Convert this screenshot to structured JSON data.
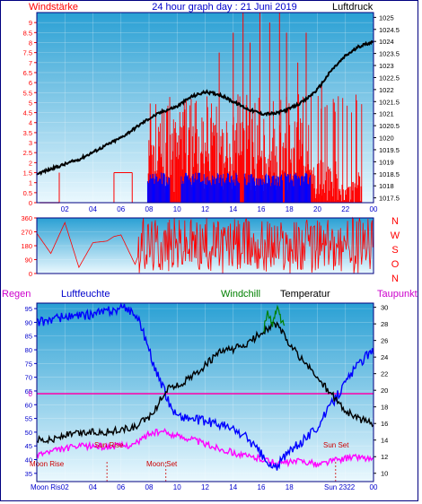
{
  "header": {
    "left_label": "Windstärke",
    "title": "24 hour graph day : 21 Juni 2019",
    "right_label": "Luftdruck"
  },
  "colors": {
    "frame": "#000080",
    "plot_bg_top": "#39a9d6",
    "plot_bg_bottom": "#e8f7fd",
    "wind": "#ff0000",
    "gust": "#0000ff",
    "pressure": "#000000",
    "direction": "#ff0000",
    "humidity": "#0000ff",
    "temperature": "#000000",
    "dewpoint": "#ff00ff",
    "windchill": "#008000",
    "rain_line": "#ff00aa"
  },
  "chart_data": [
    {
      "type": "line",
      "name": "wind-pressure",
      "x_tick_labels": [
        "02",
        "04",
        "06",
        "08",
        "10",
        "12",
        "14",
        "16",
        "18",
        "20",
        "22",
        "00"
      ],
      "left_axis_label": "Windstärke",
      "left_ticks": [
        "0",
        "0.5",
        "1",
        "1.5",
        "2",
        "2.5",
        "3",
        "3.5",
        "4",
        "4.5",
        "5",
        "5.5",
        "6",
        "6.5",
        "7",
        "7.5",
        "8",
        "8.5",
        "9"
      ],
      "ylim_left": [
        0,
        9.5
      ],
      "right_axis_label": "Luftdruck",
      "right_ticks": [
        "1017.5",
        "1018",
        "1018.5",
        "1019",
        "1019.5",
        "1020",
        "1020.5",
        "1021",
        "1021.5",
        "1022",
        "1022.5",
        "1023",
        "1023.5",
        "1024",
        "1024.5",
        "1025"
      ],
      "ylim_right": [
        1017.3,
        1025.2
      ],
      "pressure": {
        "x": [
          0,
          1,
          2,
          3,
          4,
          5,
          6,
          7,
          8,
          9,
          10,
          11,
          12,
          13,
          14,
          15,
          16,
          17,
          18,
          19,
          20,
          21,
          22,
          23,
          24
        ],
        "y": [
          1018.5,
          1018.7,
          1018.9,
          1019.1,
          1019.4,
          1019.7,
          1020.0,
          1020.4,
          1020.8,
          1021.1,
          1021.3,
          1021.7,
          1021.9,
          1021.8,
          1021.5,
          1021.2,
          1021.0,
          1021.0,
          1021.2,
          1021.5,
          1022.0,
          1022.8,
          1023.4,
          1023.8,
          1024.0
        ]
      },
      "wind_speed_segments": [
        [
          7.9,
          0,
          0,
          1.5
        ],
        [
          8.0,
          2.5,
          1,
          3.5
        ],
        [
          8.3,
          3.8,
          1.5,
          4.5
        ],
        [
          8.7,
          4.8,
          2,
          4.5
        ],
        [
          9.4,
          5.3,
          2.5,
          4.5
        ],
        [
          10.5,
          5.9,
          1.5,
          4.5
        ],
        [
          11.4,
          6.8,
          2,
          4.5
        ],
        [
          12.0,
          7.8,
          2,
          4.5
        ],
        [
          12.8,
          8.5,
          2.5,
          5.0
        ],
        [
          13.6,
          9.2,
          1.5,
          4.5
        ],
        [
          14.4,
          10.0,
          2,
          4.5
        ],
        [
          15.3,
          11.0,
          1.5,
          4.5
        ],
        [
          16.2,
          11.8,
          2,
          4.5
        ],
        [
          17.0,
          12.5,
          2.5,
          4.5
        ],
        [
          17.9,
          13.3,
          2,
          4.5
        ],
        [
          18.8,
          14.2,
          1.5,
          3.5
        ],
        [
          19.5,
          15.0,
          1,
          3
        ],
        [
          20.1,
          16.0,
          0.5,
          2
        ],
        [
          21.0,
          17.0,
          0.5,
          1.5
        ],
        [
          22.6,
          18.5,
          0,
          1
        ]
      ],
      "wind_tall_spikes": [
        [
          13.0,
          7.5
        ],
        [
          14.0,
          8.5
        ],
        [
          14.7,
          9.5
        ],
        [
          15.2,
          8.0
        ],
        [
          15.9,
          9.5
        ],
        [
          16.6,
          9.0
        ],
        [
          17.3,
          9.5
        ],
        [
          17.8,
          8.5
        ],
        [
          18.6,
          7.0
        ],
        [
          19.2,
          8.5
        ],
        [
          20.3,
          6.0
        ],
        [
          21.2,
          5.0
        ]
      ],
      "gust_bands": [
        [
          7.9,
          8.2,
          0,
          1.5
        ],
        [
          8.2,
          9.5,
          0,
          1.5
        ],
        [
          10.3,
          14.5,
          0,
          1.5
        ],
        [
          14.8,
          17.5,
          0,
          1.5
        ],
        [
          17.7,
          19.5,
          0,
          1.5
        ]
      ]
    },
    {
      "type": "line",
      "name": "wind-direction",
      "left_ticks": [
        "0",
        "90",
        "180",
        "270",
        "360"
      ],
      "ylim": [
        0,
        360
      ],
      "right_labels": [
        "N",
        "W",
        "S",
        "O",
        "N"
      ],
      "x": [
        0,
        1,
        2,
        3,
        4,
        5,
        5.5,
        6,
        7,
        7.5,
        8,
        8.5,
        9,
        9.5,
        10,
        10.5,
        11,
        11.5,
        12,
        12.5,
        13,
        13.5,
        14,
        14.5,
        15,
        15.5,
        16,
        16.5,
        17,
        17.5,
        18,
        18.5,
        19,
        19.5,
        20,
        20.5,
        21,
        21.5,
        22,
        22.5,
        23,
        23.5,
        24
      ],
      "y": [
        260,
        130,
        330,
        40,
        200,
        210,
        240,
        250,
        60,
        180,
        290,
        150,
        320,
        80,
        300,
        200,
        100,
        340,
        160,
        250,
        60,
        300,
        180,
        90,
        330,
        210,
        120,
        280,
        50,
        250,
        190,
        100,
        320,
        80,
        240,
        20,
        300,
        150,
        270,
        60,
        200,
        310,
        80
      ]
    },
    {
      "type": "line",
      "name": "temp-humidity",
      "header_labels": [
        "Regen",
        "Luftfeuchte",
        "Windchill",
        "Temperatur",
        "Taupunkt"
      ],
      "x_tick_labels": [
        "02",
        "04",
        "06",
        "08",
        "10",
        "12",
        "14",
        "16",
        "18",
        "20",
        "22",
        "00"
      ],
      "left_ticks": [
        "35",
        "40",
        "45",
        "50",
        "55",
        "60",
        "65",
        "70",
        "75",
        "80",
        "85",
        "90",
        "95"
      ],
      "ylim_left": [
        32,
        97
      ],
      "rain_value_label": "0",
      "right_ticks": [
        "10",
        "12",
        "14",
        "16",
        "18",
        "20",
        "22",
        "24",
        "26",
        "28",
        "30"
      ],
      "ylim_right": [
        9,
        30.5
      ],
      "humidity": {
        "x": [
          0,
          1,
          2,
          3,
          4,
          5,
          6,
          6.5,
          7,
          7.5,
          8,
          8.5,
          9,
          9.5,
          10,
          11,
          12,
          13,
          14,
          15,
          16,
          16.5,
          17,
          17.5,
          18,
          19,
          20,
          21,
          22,
          22.5,
          23,
          23.5,
          24
        ],
        "y": [
          90,
          91,
          92,
          92,
          93,
          94,
          95,
          95,
          93,
          88,
          80,
          72,
          66,
          60,
          56,
          55,
          54,
          53,
          51,
          48,
          42,
          38,
          37,
          40,
          43,
          47,
          52,
          60,
          68,
          72,
          75,
          78,
          79
        ]
      },
      "temperature": {
        "x": [
          0,
          1,
          2,
          3,
          4,
          5,
          6,
          7,
          8,
          8.5,
          9,
          9.5,
          10,
          11,
          12,
          13,
          14,
          15,
          16,
          16.5,
          17,
          17.5,
          18,
          19,
          20,
          21,
          22,
          23,
          24
        ],
        "y": [
          14.2,
          14.0,
          14.6,
          14.8,
          15.0,
          15.0,
          15.2,
          15.5,
          16.8,
          17.8,
          19.5,
          20.5,
          20.5,
          21.5,
          23.0,
          24.5,
          25.0,
          25.5,
          27.0,
          27.5,
          28.0,
          27.0,
          25.5,
          23.5,
          21.5,
          19.5,
          17.5,
          16.5,
          16.0
        ]
      },
      "dewpoint": {
        "x": [
          0,
          1,
          2,
          3,
          4,
          5,
          6,
          7,
          8,
          9,
          10,
          11,
          12,
          13,
          14,
          15,
          16,
          17,
          18,
          19,
          20,
          21,
          22,
          23,
          24
        ],
        "y": [
          12.3,
          12.6,
          13.0,
          13.2,
          13.3,
          13.2,
          13.3,
          13.5,
          14.8,
          15.0,
          14.5,
          14.2,
          13.5,
          13.0,
          12.5,
          12.0,
          11.8,
          11.2,
          11.3,
          11.5,
          11.0,
          11.5,
          11.8,
          12.0,
          11.6
        ]
      },
      "windchill": {
        "x": [
          16.2,
          16.5,
          16.8,
          17.1,
          17.4,
          17.7
        ],
        "y": [
          27.5,
          29.5,
          28.0,
          29.8,
          28.5,
          27.8
        ]
      },
      "rain": {
        "value_level": 64
      },
      "annotations": {
        "sun_rise": "Sun Rise",
        "sun_set": "Sun Set",
        "moon_rise": "Moon Rise",
        "moon_set": "Moon Set",
        "bottom_moon_rise": "Moon Ris02",
        "bottom_sun_set": "Sun 2322"
      }
    }
  ]
}
